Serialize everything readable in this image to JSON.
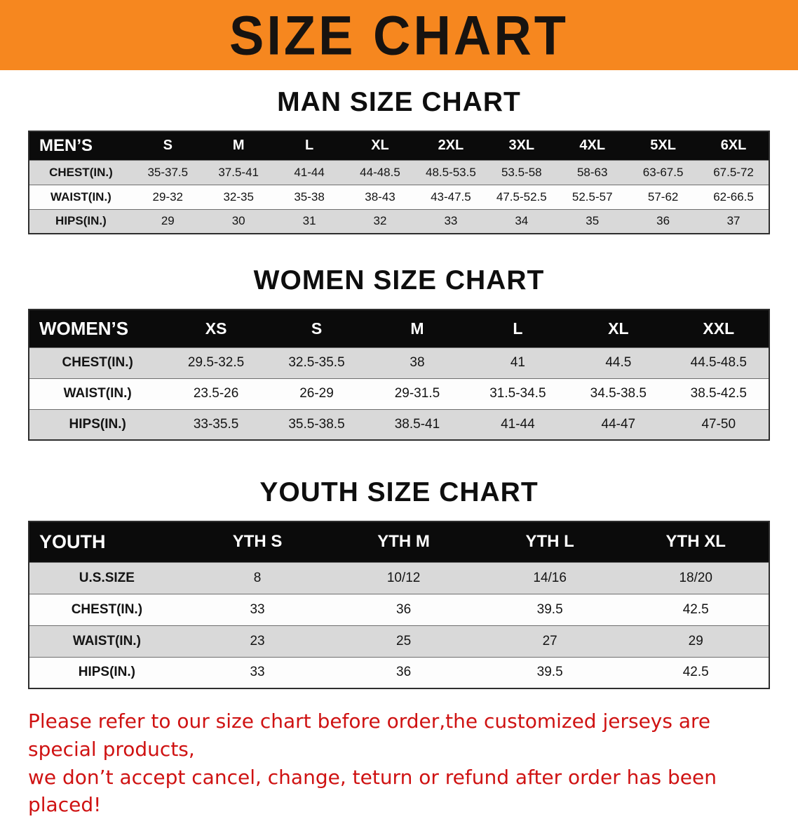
{
  "banner": {
    "title": "SIZE CHART"
  },
  "sections": [
    {
      "heading": "MAN SIZE CHART",
      "table": {
        "header": [
          "MEN’S",
          "S",
          "M",
          "L",
          "XL",
          "2XL",
          "3XL",
          "4XL",
          "5XL",
          "6XL"
        ],
        "rows": [
          [
            "CHEST(IN.)",
            "35-37.5",
            "37.5-41",
            "41-44",
            "44-48.5",
            "48.5-53.5",
            "53.5-58",
            "58-63",
            "63-67.5",
            "67.5-72"
          ],
          [
            "WAIST(IN.)",
            "29-32",
            "32-35",
            "35-38",
            "38-43",
            "43-47.5",
            "47.5-52.5",
            "52.5-57",
            "57-62",
            "62-66.5"
          ],
          [
            "HIPS(IN.)",
            "29",
            "30",
            "31",
            "32",
            "33",
            "34",
            "35",
            "36",
            "37"
          ]
        ]
      }
    },
    {
      "heading": "WOMEN SIZE CHART",
      "table": {
        "header": [
          "WOMEN’S",
          "XS",
          "S",
          "M",
          "L",
          "XL",
          "XXL"
        ],
        "rows": [
          [
            "CHEST(IN.)",
            "29.5-32.5",
            "32.5-35.5",
            "38",
            "41",
            "44.5",
            "44.5-48.5"
          ],
          [
            "WAIST(IN.)",
            "23.5-26",
            "26-29",
            "29-31.5",
            "31.5-34.5",
            "34.5-38.5",
            "38.5-42.5"
          ],
          [
            "HIPS(IN.)",
            "33-35.5",
            "35.5-38.5",
            "38.5-41",
            "41-44",
            "44-47",
            "47-50"
          ]
        ]
      }
    },
    {
      "heading": "YOUTH SIZE CHART",
      "table": {
        "header": [
          "YOUTH",
          "YTH S",
          "YTH M",
          "YTH L",
          "YTH XL"
        ],
        "rows": [
          [
            "U.S.SIZE",
            "8",
            "10/12",
            "14/16",
            "18/20"
          ],
          [
            "CHEST(IN.)",
            "33",
            "36",
            "39.5",
            "42.5"
          ],
          [
            "WAIST(IN.)",
            "23",
            "25",
            "27",
            "29"
          ],
          [
            "HIPS(IN.)",
            "33",
            "36",
            "39.5",
            "42.5"
          ]
        ]
      }
    }
  ],
  "disclaimer": {
    "line1": "Please refer to our size chart before order,the customized jerseys are special products,",
    "line2": "we don’t accept cancel, change, teturn or refund after order has been placed!"
  }
}
